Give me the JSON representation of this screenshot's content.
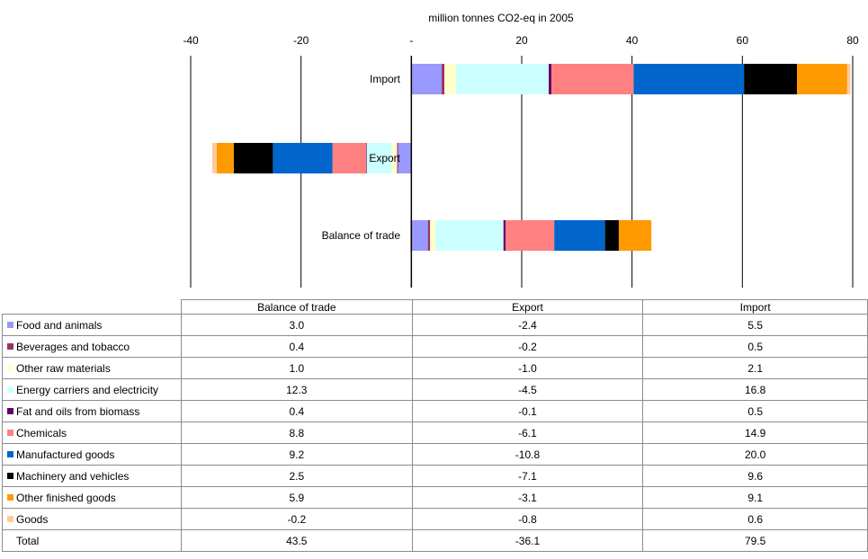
{
  "chart_data": {
    "type": "bar",
    "orientation": "horizontal",
    "stacked": true,
    "title": "million tonnes CO2-eq in 2005",
    "xlim": [
      -40,
      80
    ],
    "x_ticks": [
      "-40",
      "-20",
      "-",
      "20",
      "40",
      "60",
      "80"
    ],
    "x_tick_values": [
      -40,
      -20,
      0,
      20,
      40,
      60,
      80
    ],
    "grid": true,
    "bar_rows": [
      "Import",
      "Export",
      "Balance of trade"
    ],
    "table_columns": [
      "Balance of trade",
      "Export",
      "Import"
    ],
    "series": [
      {
        "name": "Food and animals",
        "color": "#9999ff",
        "values": {
          "Balance of trade": 3.0,
          "Export": -2.4,
          "Import": 5.5
        },
        "labels": [
          "3.0",
          "-2.4",
          "5.5"
        ]
      },
      {
        "name": "Beverages and tobacco",
        "color": "#993366",
        "values": {
          "Balance of trade": 0.4,
          "Export": -0.2,
          "Import": 0.5
        },
        "labels": [
          "0.4",
          "-0.2",
          "0.5"
        ]
      },
      {
        "name": "Other raw materials",
        "color": "#ffffcc",
        "values": {
          "Balance of trade": 1.0,
          "Export": -1.0,
          "Import": 2.1
        },
        "labels": [
          "1.0",
          "-1.0",
          "2.1"
        ]
      },
      {
        "name": "Energy carriers and electricity",
        "color": "#ccffff",
        "values": {
          "Balance of trade": 12.3,
          "Export": -4.5,
          "Import": 16.8
        },
        "labels": [
          "12.3",
          "-4.5",
          "16.8"
        ]
      },
      {
        "name": "Fat and oils from biomass",
        "color": "#660066",
        "values": {
          "Balance of trade": 0.4,
          "Export": -0.1,
          "Import": 0.5
        },
        "labels": [
          "0.4",
          "-0.1",
          "0.5"
        ]
      },
      {
        "name": "Chemicals",
        "color": "#ff8080",
        "values": {
          "Balance of trade": 8.8,
          "Export": -6.1,
          "Import": 14.9
        },
        "labels": [
          "8.8",
          "-6.1",
          "14.9"
        ]
      },
      {
        "name": "Manufactured goods",
        "color": "#0066cc",
        "values": {
          "Balance of trade": 9.2,
          "Export": -10.8,
          "Import": 20.0
        },
        "labels": [
          "9.2",
          "-10.8",
          "20.0"
        ]
      },
      {
        "name": "Machinery and vehicles",
        "color": "#000000",
        "values": {
          "Balance of trade": 2.5,
          "Export": -7.1,
          "Import": 9.6
        },
        "labels": [
          "2.5",
          "-7.1",
          "9.6"
        ]
      },
      {
        "name": "Other finished goods",
        "color": "#ff9900",
        "values": {
          "Balance of trade": 5.9,
          "Export": -3.1,
          "Import": 9.1
        },
        "labels": [
          "5.9",
          "-3.1",
          "9.1"
        ]
      },
      {
        "name": "Goods",
        "color": "#ffcc99",
        "values": {
          "Balance of trade": -0.2,
          "Export": -0.8,
          "Import": 0.6
        },
        "labels": [
          "-0.2",
          "-0.8",
          "0.6"
        ]
      }
    ],
    "total": {
      "name": "Total",
      "labels": [
        "43.5",
        "-36.1",
        "79.5"
      ]
    }
  }
}
